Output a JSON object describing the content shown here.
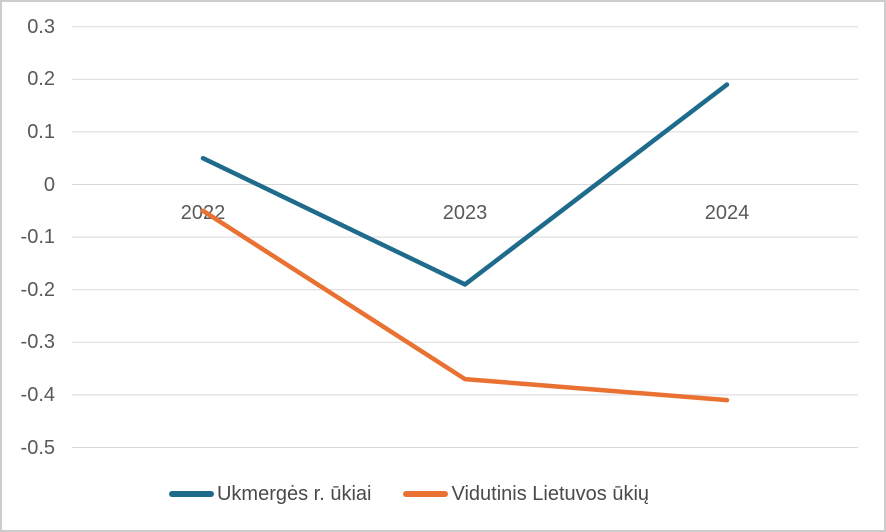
{
  "chart_data": {
    "type": "line",
    "title": "",
    "xlabel": "",
    "ylabel": "",
    "categories": [
      "2022",
      "2023",
      "2024"
    ],
    "series": [
      {
        "name": "Ukmergės r. ūkiai",
        "color": "#1E6B8C",
        "values": [
          0.05,
          -0.19,
          0.19
        ]
      },
      {
        "name": "Vidutinis Lietuvos ūkių",
        "color": "#E97132",
        "values": [
          -0.05,
          -0.37,
          -0.41
        ]
      }
    ],
    "yticks": [
      "0.3",
      "0.2",
      "0.1",
      "0",
      "-0.1",
      "-0.2",
      "-0.3",
      "-0.4",
      "-0.5"
    ],
    "ylim": [
      -0.5,
      0.3
    ],
    "grid": true,
    "legend_position": "bottom"
  },
  "colors": {
    "gridline": "#D9D9D9",
    "tick_label": "#595959",
    "legend_text": "#4A4A4A",
    "frame_border": "#CCCCCC",
    "background": "#FFFFFF"
  }
}
